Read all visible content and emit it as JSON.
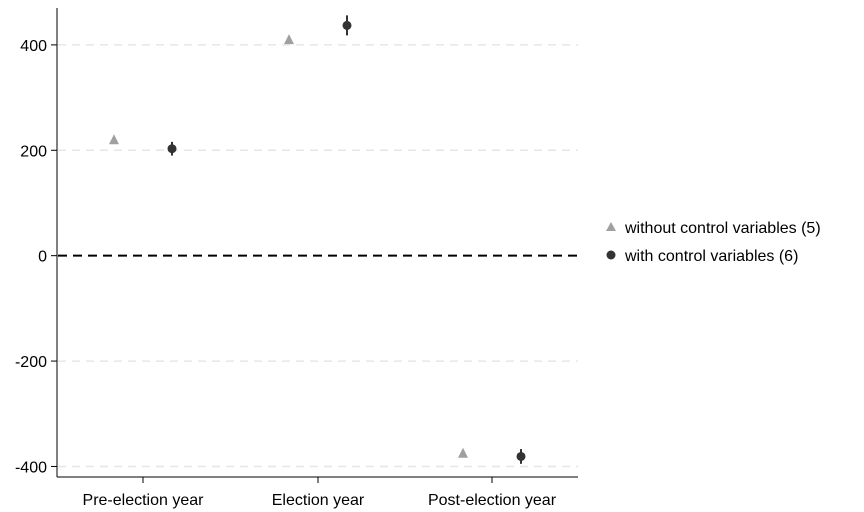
{
  "chart_data": {
    "type": "scatter",
    "title": "",
    "xlabel": "",
    "ylabel": "",
    "categories": [
      "Pre-election year",
      "Election year",
      "Post-election year"
    ],
    "ylim": [
      -420,
      470
    ],
    "yticks": [
      -400,
      -200,
      0,
      200,
      400
    ],
    "grid": true,
    "reference_line": 0,
    "legend_position": "right",
    "series": [
      {
        "name": "without control variables (5)",
        "marker": "triangle",
        "color": "#a0a0a0",
        "values": [
          220,
          410,
          -375
        ],
        "ci": [
          [
            216,
            224
          ],
          [
            403,
            415
          ],
          [
            -379,
            -371
          ]
        ]
      },
      {
        "name": "with control variables (6)",
        "marker": "circle",
        "color": "#333333",
        "values": [
          203,
          437,
          -381
        ],
        "ci": [
          [
            190,
            216
          ],
          [
            418,
            456
          ],
          [
            -395,
            -367
          ]
        ]
      }
    ]
  }
}
